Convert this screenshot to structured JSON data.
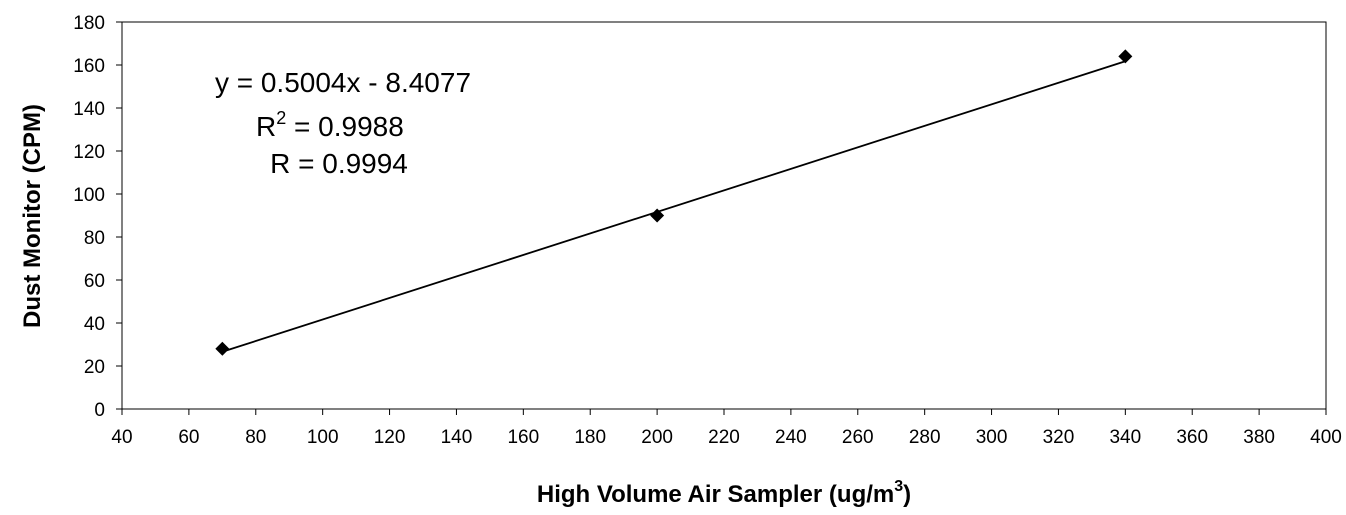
{
  "chart_data": {
    "type": "scatter",
    "title": "",
    "xlabel": "High Volume Air Sampler (ug/m",
    "xlabel_superscript": "3",
    "xlabel_suffix": ")",
    "ylabel": "Dust Monitor (CPM)",
    "xlim": [
      40,
      400
    ],
    "ylim": [
      0,
      180
    ],
    "x_ticks": [
      40,
      60,
      80,
      100,
      120,
      140,
      160,
      180,
      200,
      220,
      240,
      260,
      280,
      300,
      320,
      340,
      360,
      380,
      400
    ],
    "y_ticks": [
      0,
      20,
      40,
      60,
      80,
      100,
      120,
      140,
      160,
      180
    ],
    "grid": false,
    "legend": "none",
    "series": [
      {
        "points": [
          {
            "x": 70,
            "y": 28
          },
          {
            "x": 200,
            "y": 90
          },
          {
            "x": 340,
            "y": 164
          }
        ],
        "marker": "diamond",
        "color": "#000000"
      }
    ],
    "trendline": {
      "slope": 0.5004,
      "intercept": -8.4077,
      "x_range": [
        70,
        340
      ],
      "color": "#000000"
    },
    "annotations": {
      "equation": "y = 0.5004x - 8.4077",
      "r2_prefix": "R",
      "r2_sup": "2",
      "r2_value": " = 0.9988",
      "r_text": "R = 0.9994"
    }
  }
}
